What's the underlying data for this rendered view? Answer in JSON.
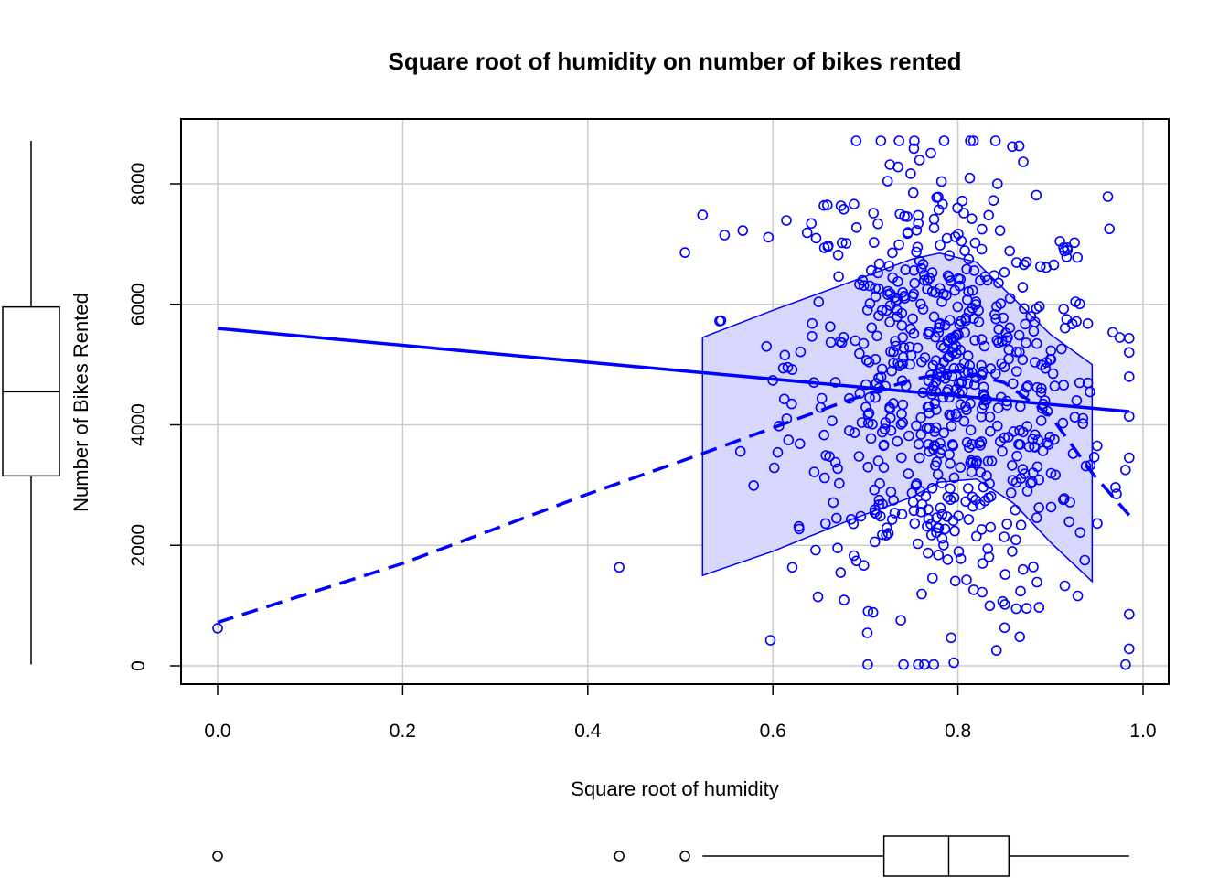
{
  "chart_data": {
    "type": "scatter",
    "title": "Square root of humidity on number of bikes rented",
    "xlabel": "Square root of humidity",
    "ylabel": "Number of Bikes Rented",
    "xlim": [
      -0.04,
      1.03
    ],
    "ylim": [
      -300,
      9100
    ],
    "x_ticks": [
      0.0,
      0.2,
      0.4,
      0.6,
      0.8,
      1.0
    ],
    "x_tick_labels": [
      "0.0",
      "0.2",
      "0.4",
      "0.6",
      "0.8",
      "1.0"
    ],
    "y_ticks": [
      0,
      2000,
      4000,
      6000,
      8000
    ],
    "y_tick_labels": [
      "0",
      "2000",
      "4000",
      "6000",
      "8000"
    ],
    "grid": true,
    "point_color": "#0000ff",
    "band_fill": "#d8d8ff",
    "outlier_points": [
      {
        "x": 0.0,
        "y": 623
      },
      {
        "x": 0.434,
        "y": 1635
      },
      {
        "x": 0.505,
        "y": 6860
      }
    ],
    "regression_line": {
      "x": [
        0.0,
        0.985
      ],
      "y": [
        5600,
        4220
      ]
    },
    "smoother_line": {
      "x": [
        0.0,
        0.2,
        0.4,
        0.52,
        0.6,
        0.68,
        0.75,
        0.8,
        0.85,
        0.9,
        0.945,
        0.985
      ],
      "y": [
        720,
        1700,
        2850,
        3500,
        3950,
        4400,
        4750,
        4900,
        4700,
        4150,
        3200,
        2500
      ]
    },
    "spread_band": {
      "x": [
        0.524,
        0.6,
        0.68,
        0.75,
        0.78,
        0.82,
        0.86,
        0.9,
        0.945
      ],
      "upper": [
        5450,
        5900,
        6350,
        6750,
        6850,
        6700,
        6100,
        5500,
        5000
      ],
      "lower": [
        1500,
        1900,
        2400,
        2800,
        3050,
        3100,
        2700,
        2050,
        1400
      ]
    },
    "x_boxplot": {
      "whisker_low": 0.524,
      "q1": 0.72,
      "median": 0.79,
      "q3": 0.855,
      "whisker_high": 0.985,
      "outliers": [
        0.0,
        0.434,
        0.505
      ]
    },
    "y_boxplot": {
      "whisker_low": 22,
      "q1": 3152,
      "median": 4548,
      "q3": 5956,
      "whisker_high": 8714
    }
  }
}
